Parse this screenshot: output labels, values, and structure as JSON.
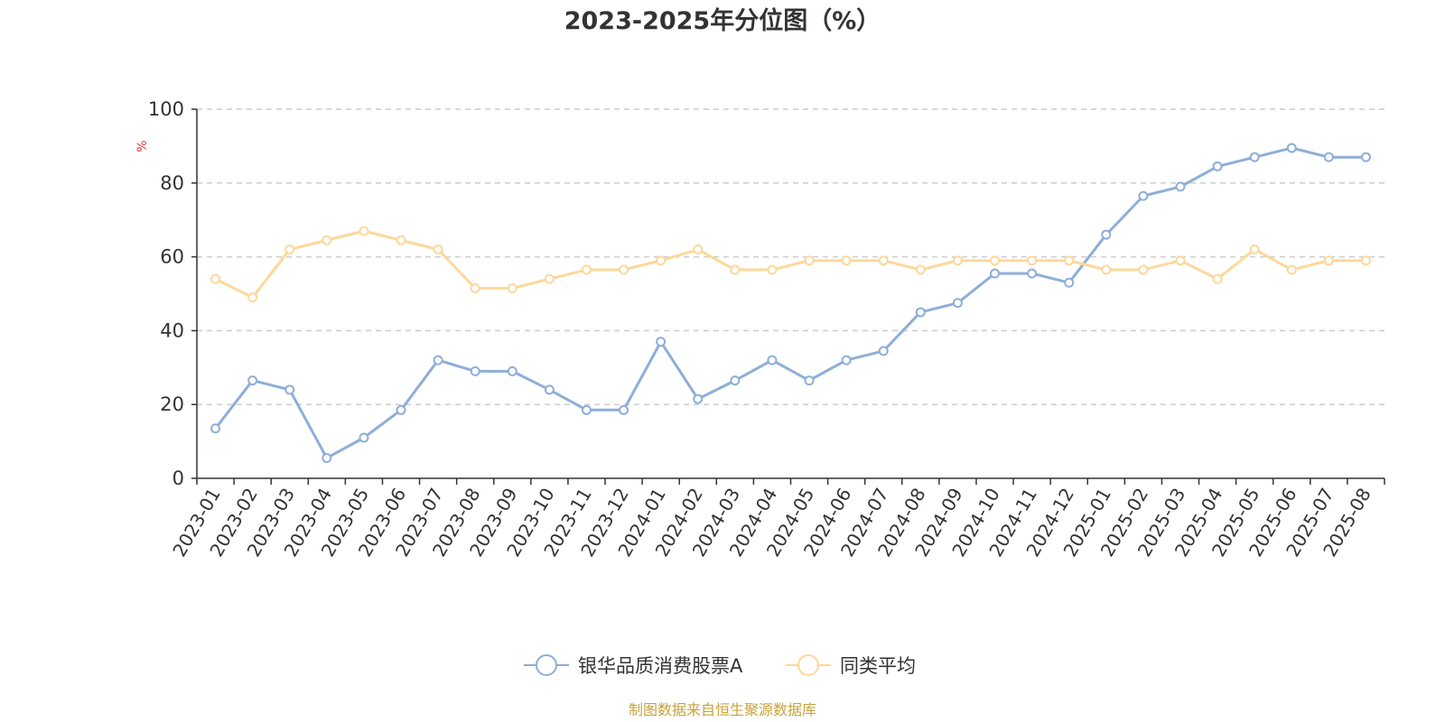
{
  "chart_data": {
    "type": "line",
    "title": "2023-2025年分位图（%）",
    "ylabel": "%",
    "xlabel": "",
    "ylim": [
      0,
      100
    ],
    "yticks": [
      "0",
      "20",
      "40",
      "60",
      "80",
      "100"
    ],
    "grid": "horizontal dashed",
    "legend_position": "bottom-center",
    "categories": [
      "2023-01",
      "2023-02",
      "2023-03",
      "2023-04",
      "2023-05",
      "2023-06",
      "2023-07",
      "2023-08",
      "2023-09",
      "2023-10",
      "2023-11",
      "2023-12",
      "2024-01",
      "2024-02",
      "2024-03",
      "2024-04",
      "2024-05",
      "2024-06",
      "2024-07",
      "2024-08",
      "2024-09",
      "2024-10",
      "2024-11",
      "2024-12",
      "2025-01",
      "2025-02",
      "2025-03",
      "2025-04",
      "2025-05",
      "2025-06",
      "2025-07",
      "2025-08"
    ],
    "series": [
      {
        "name": "银华品质消费股票A",
        "color": "#8eaed8",
        "values": [
          13.5,
          26.5,
          24,
          5.5,
          11,
          18.5,
          32,
          29,
          29,
          24,
          18.5,
          18.5,
          37,
          21.5,
          26.5,
          32,
          26.5,
          32,
          34.5,
          45,
          47.5,
          55.5,
          55.5,
          53,
          66,
          76.5,
          79,
          84.5,
          87,
          89.5,
          87,
          87
        ]
      },
      {
        "name": "同类平均",
        "color": "#fdd89a",
        "values": [
          54,
          49,
          62,
          64.5,
          67,
          64.5,
          62,
          51.5,
          51.5,
          54,
          56.5,
          56.5,
          59,
          62,
          56.5,
          56.5,
          59,
          59,
          59,
          56.5,
          59,
          59,
          59,
          59,
          56.5,
          56.5,
          59,
          54,
          62,
          56.5,
          59,
          59
        ]
      }
    ]
  },
  "footer": {
    "source": "制图数据来自恒生聚源数据库"
  },
  "colors": {
    "source_text": "#c8a23c",
    "unit_label": "#e53935",
    "axis": "#333333",
    "grid": "#cccccc"
  }
}
